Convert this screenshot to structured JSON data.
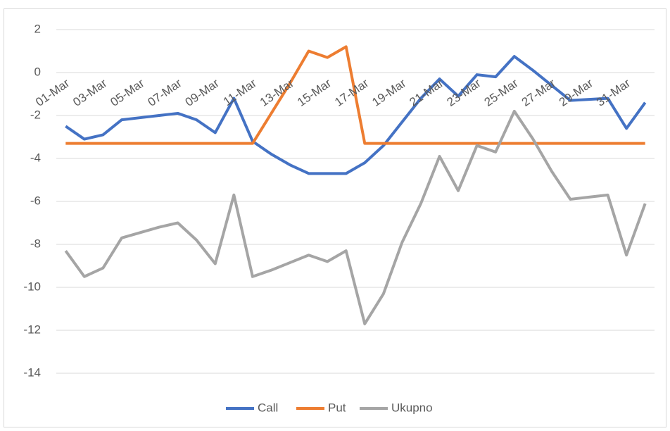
{
  "chart_data": {
    "type": "line",
    "categories": [
      "01-Mar",
      null,
      "03-Mar",
      null,
      "05-Mar",
      null,
      "07-Mar",
      null,
      "09-Mar",
      null,
      "11-Mar",
      null,
      "13-Mar",
      null,
      "15-Mar",
      null,
      "17-Mar",
      null,
      "19-Mar",
      null,
      "21-Mar",
      null,
      "23-Mar",
      null,
      "25-Mar",
      null,
      "27-Mar",
      null,
      "29-Mar",
      null,
      "31-Mar",
      null
    ],
    "series": [
      {
        "name": "Call",
        "color": "#4472c4",
        "values": [
          -2.5,
          -3.1,
          -2.9,
          -2.2,
          -2.1,
          -2.0,
          -1.9,
          -2.2,
          -2.8,
          -1.2,
          -3.2,
          -3.8,
          -4.3,
          -4.7,
          -4.7,
          -4.7,
          -4.2,
          -3.4,
          -2.3,
          -1.2,
          -0.3,
          -1.1,
          -0.1,
          -0.2,
          0.75,
          0.1,
          -0.6,
          -1.3,
          -1.25,
          -1.2,
          -2.6,
          -1.4
        ]
      },
      {
        "name": "Put",
        "color": "#ed7d31",
        "values": [
          -3.3,
          -3.3,
          -3.3,
          -3.3,
          -3.3,
          -3.3,
          -3.3,
          -3.3,
          -3.3,
          -3.3,
          -3.3,
          -1.9,
          -0.5,
          1.0,
          0.7,
          1.2,
          -3.3,
          -3.3,
          -3.3,
          -3.3,
          -3.3,
          -3.3,
          -3.3,
          -3.3,
          -3.3,
          -3.3,
          -3.3,
          -3.3,
          -3.3,
          -3.3,
          -3.3,
          -3.3
        ]
      },
      {
        "name": "Ukupno",
        "color": "#a5a5a5",
        "values": [
          -8.3,
          -9.5,
          -9.1,
          -7.7,
          -7.45,
          -7.2,
          -7.0,
          -7.8,
          -8.9,
          -5.7,
          -9.5,
          -9.2,
          -8.85,
          -8.5,
          -8.8,
          -8.3,
          -11.7,
          -10.3,
          -7.9,
          -6.1,
          -3.9,
          -5.5,
          -3.4,
          -3.7,
          -1.8,
          -3.1,
          -4.6,
          -5.9,
          -5.8,
          -5.7,
          -8.5,
          -6.1
        ]
      }
    ],
    "ylim": [
      -14,
      2
    ],
    "yticks": [
      2,
      0,
      -2,
      -4,
      -6,
      -8,
      -10,
      -12,
      -14
    ],
    "grid": true,
    "legend": "bottom"
  }
}
